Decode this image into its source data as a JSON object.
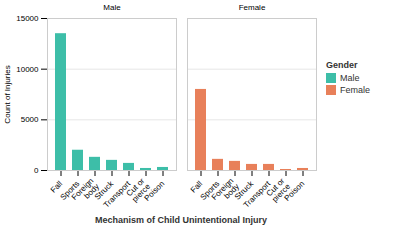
{
  "chart_data": {
    "type": "bar",
    "xlabel": "Mechanism of Child Unintentional Injury",
    "ylabel": "Count of Injuries",
    "legend_title": "Gender",
    "categories": [
      "Fall",
      "Sports",
      "Foreign\nbody",
      "Struck",
      "Transport",
      "Cut or\npierce",
      "Poison"
    ],
    "series": [
      {
        "name": "Male",
        "color": "#3DBEA8",
        "values": [
          13500,
          2000,
          1300,
          1000,
          700,
          200,
          300
        ]
      },
      {
        "name": "Female",
        "color": "#E8805A",
        "values": [
          8000,
          1100,
          900,
          600,
          600,
          100,
          200
        ]
      }
    ],
    "ylim": [
      0,
      15000
    ],
    "yticks": [
      0,
      5000,
      10000,
      15000
    ],
    "grid": true,
    "legend": "right"
  }
}
